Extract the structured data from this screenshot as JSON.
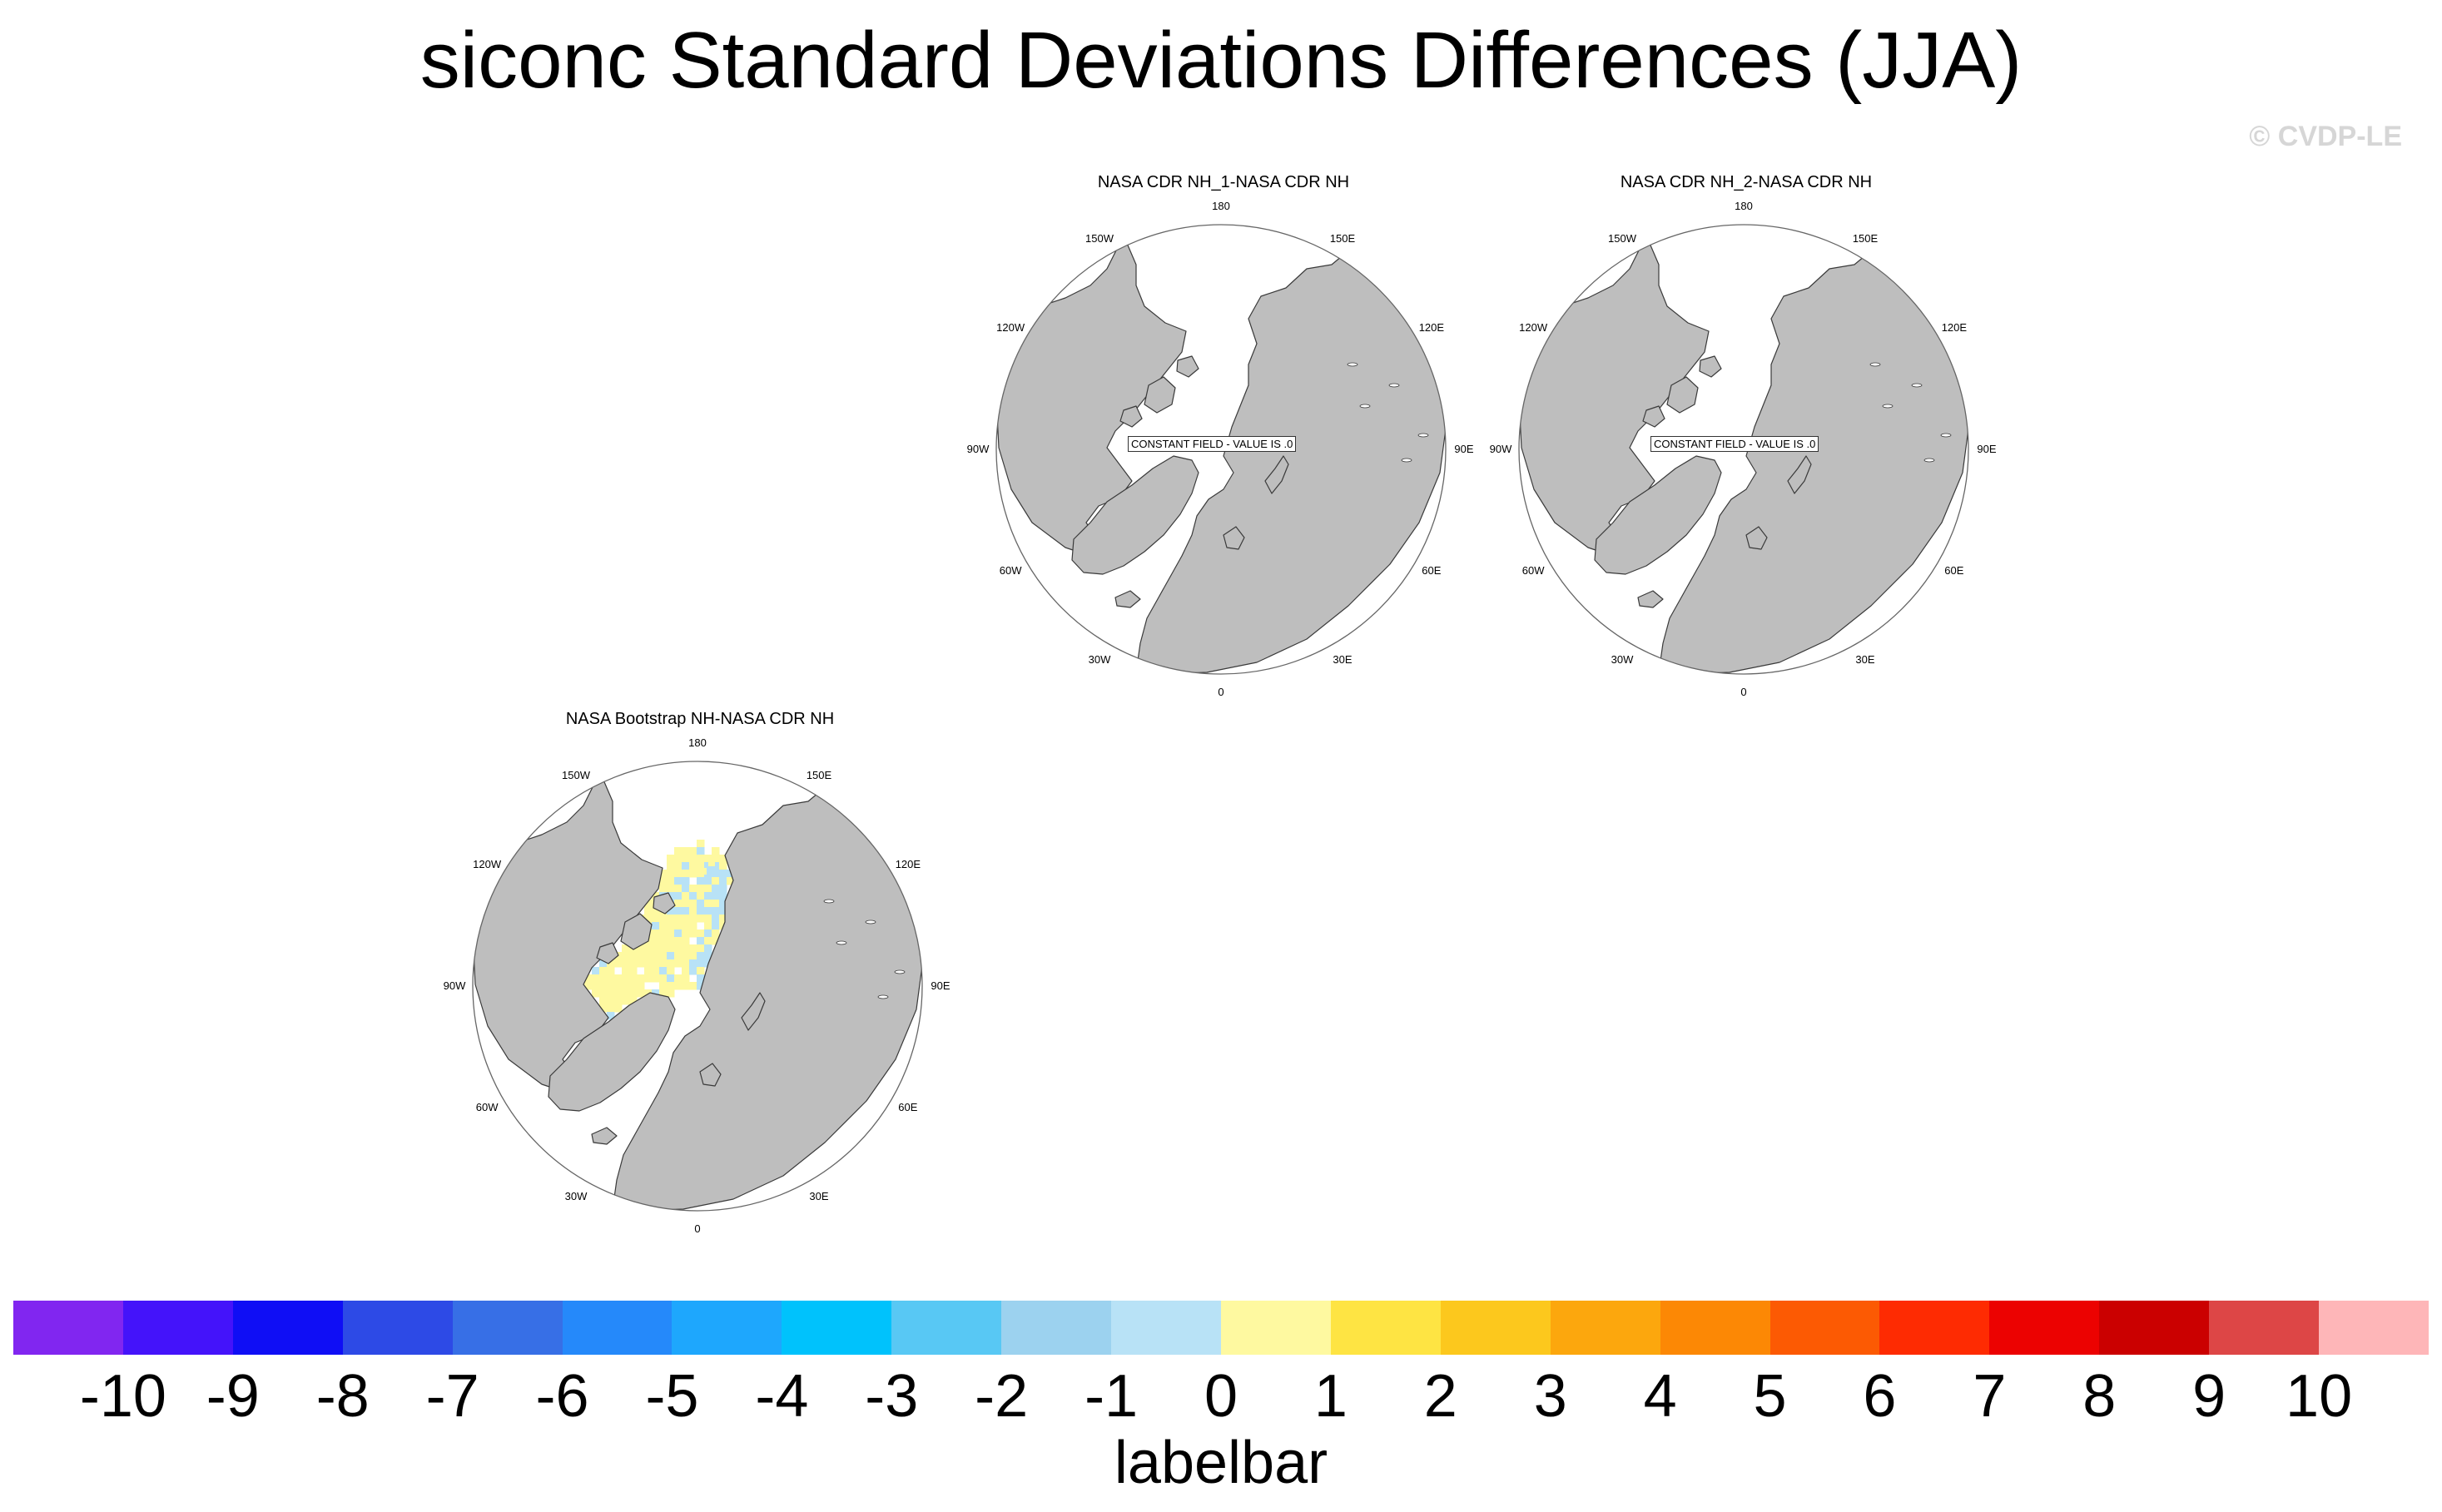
{
  "title": "siconc Standard Deviations Differences (JJA)",
  "copyright": "© CVDP-LE",
  "colors": {
    "land": "#bebebe",
    "ocean": "#ffffff",
    "coast": "#3a3a3a",
    "circle": "#666666"
  },
  "panels": [
    {
      "title": "NASA CDR NH_1-NASA CDR NH",
      "constant_field_label": "CONSTANT FIELD - VALUE IS .0",
      "has_data": false
    },
    {
      "title": "NASA CDR NH_2-NASA CDR NH",
      "constant_field_label": "CONSTANT FIELD - VALUE IS .0",
      "has_data": false
    },
    {
      "title": "NASA Bootstrap NH-NASA CDR NH",
      "constant_field_label": "",
      "has_data": true
    }
  ],
  "longitude_labels": [
    "180",
    "150E",
    "120E",
    "90E",
    "60E",
    "30E",
    "0",
    "30W",
    "60W",
    "90W",
    "120W",
    "150W"
  ],
  "labelbar": {
    "title": "labelbar",
    "tick_labels": [
      "-10",
      "-9",
      "-8",
      "-7",
      "-6",
      "-5",
      "-4",
      "-3",
      "-2",
      "-1",
      "0",
      "1",
      "2",
      "3",
      "4",
      "5",
      "6",
      "7",
      "8",
      "9",
      "10"
    ],
    "colors": [
      "#8126f0",
      "#4413fa",
      "#0f0ef5",
      "#2d4ae6",
      "#376fe6",
      "#2589fa",
      "#1ea7fd",
      "#00c2fc",
      "#58c8f4",
      "#9cd2ef",
      "#b8e2f6",
      "#fef9a0",
      "#fee443",
      "#fcc81d",
      "#fca70d",
      "#fc8805",
      "#fc5a03",
      "#fe2b02",
      "#ec0201",
      "#cb0000",
      "#dd4646",
      "#feb6b8"
    ]
  }
}
